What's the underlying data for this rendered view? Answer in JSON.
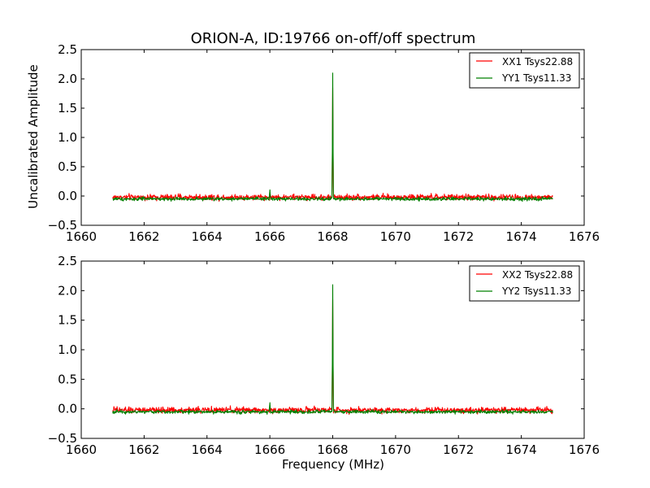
{
  "chart_data": [
    {
      "type": "line",
      "title": "ORION-A, ID:19766 on-off/off spectrum",
      "xlabel": "",
      "ylabel": "Uncalibrated Amplitude",
      "xlim": [
        1660,
        1676
      ],
      "ylim": [
        -0.5,
        2.5
      ],
      "xticks": [
        "1660",
        "1662",
        "1664",
        "1666",
        "1668",
        "1670",
        "1672",
        "1674",
        "1676"
      ],
      "yticks": [
        "−0.5",
        "0.0",
        "0.5",
        "1.0",
        "1.5",
        "2.0",
        "2.5"
      ],
      "legend_position": "top-right",
      "series": [
        {
          "name": "XX1 Tsys22.88",
          "color": "#ff0000",
          "x_range": [
            1661,
            1675
          ],
          "baseline": -0.02,
          "noise": 0.05,
          "peaks": [
            {
              "x": 1668.0,
              "y": 1.85
            }
          ]
        },
        {
          "name": "YY1 Tsys11.33",
          "color": "#008000",
          "x_range": [
            1661,
            1675
          ],
          "baseline": -0.05,
          "noise": 0.03,
          "peaks": [
            {
              "x": 1668.0,
              "y": 2.1
            },
            {
              "x": 1666.0,
              "y": 0.12
            }
          ]
        }
      ]
    },
    {
      "type": "line",
      "title": "",
      "xlabel": "Frequency (MHz)",
      "ylabel": "",
      "xlim": [
        1660,
        1676
      ],
      "ylim": [
        -0.5,
        2.5
      ],
      "xticks": [
        "1660",
        "1662",
        "1664",
        "1666",
        "1668",
        "1670",
        "1672",
        "1674",
        "1676"
      ],
      "yticks": [
        "−0.5",
        "0.0",
        "0.5",
        "1.0",
        "1.5",
        "2.0",
        "2.5"
      ],
      "legend_position": "top-right",
      "series": [
        {
          "name": "XX2 Tsys22.88",
          "color": "#ff0000",
          "x_range": [
            1661,
            1675
          ],
          "baseline": -0.02,
          "noise": 0.05,
          "peaks": [
            {
              "x": 1668.0,
              "y": 1.85
            }
          ]
        },
        {
          "name": "YY2 Tsys11.33",
          "color": "#008000",
          "x_range": [
            1661,
            1675
          ],
          "baseline": -0.05,
          "noise": 0.03,
          "peaks": [
            {
              "x": 1668.0,
              "y": 2.1
            },
            {
              "x": 1666.0,
              "y": 0.12
            }
          ]
        }
      ]
    }
  ]
}
